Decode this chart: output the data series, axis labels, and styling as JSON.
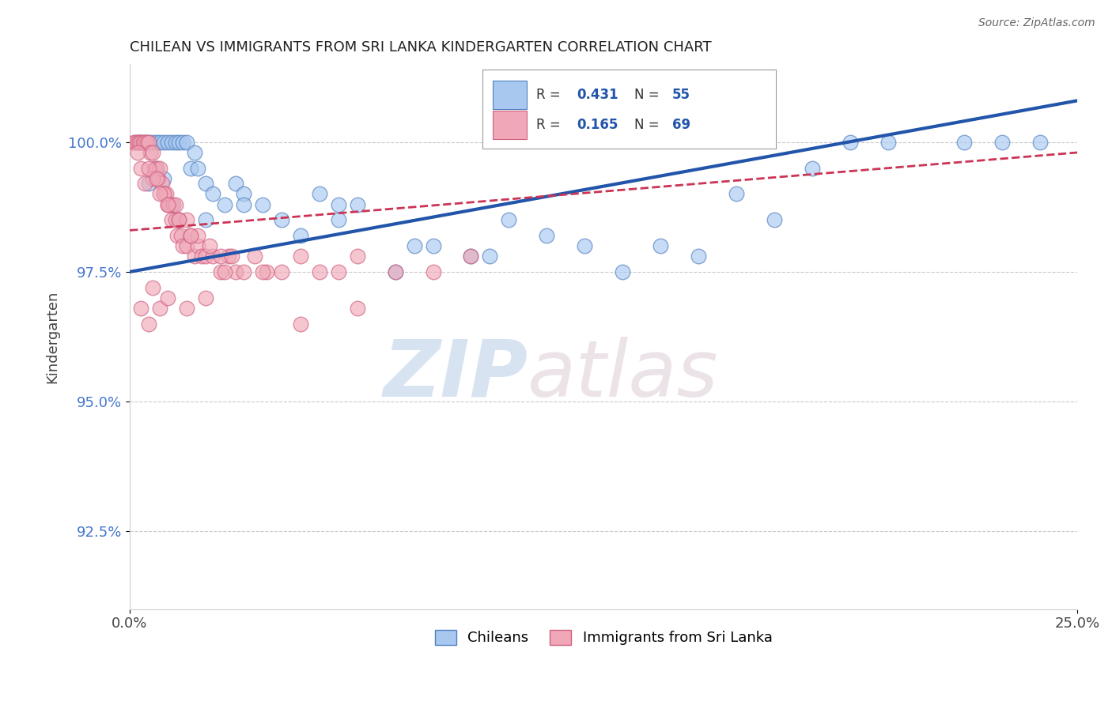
{
  "title": "CHILEAN VS IMMIGRANTS FROM SRI LANKA KINDERGARTEN CORRELATION CHART",
  "source_text": "Source: ZipAtlas.com",
  "ylabel": "Kindergarten",
  "watermark_zip": "ZIP",
  "watermark_atlas": "atlas",
  "xlim": [
    0.0,
    25.0
  ],
  "ylim": [
    91.0,
    101.5
  ],
  "xticks": [
    0.0,
    25.0
  ],
  "xticklabels": [
    "0.0%",
    "25.0%"
  ],
  "yticks": [
    92.5,
    95.0,
    97.5,
    100.0
  ],
  "yticklabels": [
    "92.5%",
    "95.0%",
    "97.5%",
    "100.0%"
  ],
  "legend_r_blue": "0.431",
  "legend_n_blue": "55",
  "legend_r_pink": "0.165",
  "legend_n_pink": "69",
  "legend_label_blue": "Chileans",
  "legend_label_pink": "Immigrants from Sri Lanka",
  "blue_color": "#A8C8F0",
  "pink_color": "#F0A8B8",
  "blue_edge_color": "#5080C0",
  "pink_edge_color": "#D06080",
  "blue_line_color": "#2255AA",
  "pink_line_color": "#CC3355",
  "blue_scatter_x": [
    0.2,
    0.3,
    0.4,
    0.5,
    0.6,
    0.7,
    0.8,
    0.9,
    1.0,
    1.1,
    1.2,
    1.3,
    1.4,
    1.5,
    1.6,
    1.7,
    1.8,
    2.0,
    2.2,
    2.5,
    2.8,
    3.0,
    3.5,
    4.0,
    4.5,
    5.0,
    5.5,
    6.0,
    7.0,
    8.0,
    9.0,
    10.0,
    11.0,
    12.0,
    13.0,
    14.0,
    15.0,
    16.0,
    17.0,
    18.0,
    19.0,
    20.0,
    22.0,
    23.0,
    24.0,
    0.5,
    0.7,
    0.9,
    1.1,
    1.3,
    2.0,
    3.0,
    5.5,
    7.5,
    9.5
  ],
  "blue_scatter_y": [
    100.0,
    100.0,
    100.0,
    100.0,
    100.0,
    100.0,
    100.0,
    100.0,
    100.0,
    100.0,
    100.0,
    100.0,
    100.0,
    100.0,
    99.5,
    99.8,
    99.5,
    99.2,
    99.0,
    98.8,
    99.2,
    99.0,
    98.8,
    98.5,
    98.2,
    99.0,
    98.5,
    98.8,
    97.5,
    98.0,
    97.8,
    98.5,
    98.2,
    98.0,
    97.5,
    98.0,
    97.8,
    99.0,
    98.5,
    99.5,
    100.0,
    100.0,
    100.0,
    100.0,
    100.0,
    99.2,
    99.5,
    99.3,
    98.8,
    98.5,
    98.5,
    98.8,
    98.8,
    98.0,
    97.8
  ],
  "pink_scatter_x": [
    0.1,
    0.15,
    0.2,
    0.25,
    0.3,
    0.35,
    0.4,
    0.45,
    0.5,
    0.55,
    0.6,
    0.65,
    0.7,
    0.75,
    0.8,
    0.85,
    0.9,
    0.95,
    1.0,
    1.05,
    1.1,
    1.15,
    1.2,
    1.25,
    1.3,
    1.35,
    1.4,
    1.5,
    1.6,
    1.7,
    1.8,
    1.9,
    2.0,
    2.2,
    2.4,
    2.6,
    2.8,
    3.0,
    3.3,
    3.6,
    4.0,
    4.5,
    5.0,
    5.5,
    6.0,
    7.0,
    8.0,
    9.0,
    0.3,
    0.6,
    0.9,
    1.2,
    1.5,
    1.8,
    2.1,
    2.4,
    2.7,
    0.4,
    0.8,
    1.0,
    0.5,
    0.7,
    1.3,
    1.6,
    0.2,
    2.5,
    3.5,
    4.5,
    6.0
  ],
  "pink_scatter_y": [
    100.0,
    100.0,
    100.0,
    100.0,
    100.0,
    100.0,
    100.0,
    100.0,
    100.0,
    99.8,
    99.8,
    99.5,
    99.5,
    99.3,
    99.5,
    99.2,
    99.0,
    99.0,
    98.8,
    98.8,
    98.5,
    98.8,
    98.5,
    98.2,
    98.5,
    98.2,
    98.0,
    98.0,
    98.2,
    97.8,
    98.0,
    97.8,
    97.8,
    97.8,
    97.5,
    97.8,
    97.5,
    97.5,
    97.8,
    97.5,
    97.5,
    97.8,
    97.5,
    97.5,
    97.8,
    97.5,
    97.5,
    97.8,
    99.5,
    99.3,
    99.0,
    98.8,
    98.5,
    98.2,
    98.0,
    97.8,
    97.8,
    99.2,
    99.0,
    98.8,
    99.5,
    99.3,
    98.5,
    98.2,
    99.8,
    97.5,
    97.5,
    96.5,
    96.8
  ],
  "pink_outlier_x": [
    0.5,
    0.8,
    1.0,
    1.5,
    2.0,
    0.3,
    0.6
  ],
  "pink_outlier_y": [
    96.5,
    96.8,
    97.0,
    96.8,
    97.0,
    96.8,
    97.2
  ]
}
